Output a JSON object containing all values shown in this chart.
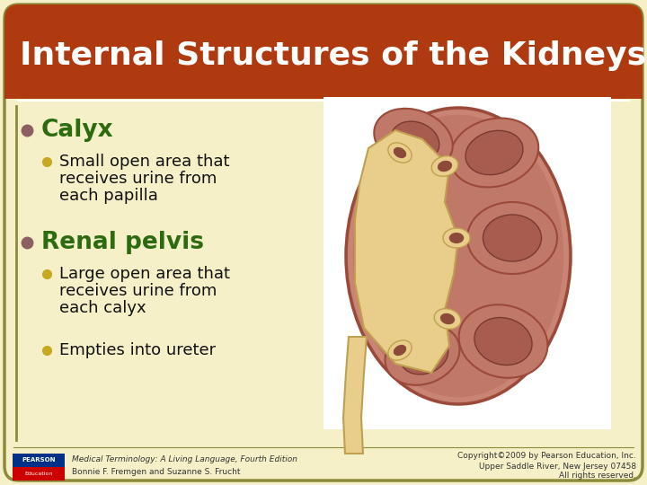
{
  "title": "Internal Structures of the Kidneys",
  "title_bg": "#B03A10",
  "title_text_color": "#FFFFFF",
  "slide_bg": "#F5F0C8",
  "slide_border_color": "#8B8B3A",
  "heading1": "Calyx",
  "heading1_color": "#2D6B10",
  "bullet1_line1": "Small open area that",
  "bullet1_line2": "receives urine from",
  "bullet1_line3": "each papilla",
  "heading2": "Renal pelvis",
  "heading2_color": "#2D6B10",
  "bullet2a_line1": "Large open area that",
  "bullet2a_line2": "receives urine from",
  "bullet2a_line3": "each calyx",
  "bullet2b": "Empties into ureter",
  "bullet_color_main": "#8B6060",
  "bullet_color_sub": "#C8A820",
  "text_color": "#111111",
  "footer_left_line1": "Medical Terminology: A Living Language, Fourth Edition",
  "footer_left_line2": "Bonnie F. Fremgen and Suzanne S. Frucht",
  "footer_right_line1": "Copyright©2009 by Pearson Education, Inc.",
  "footer_right_line2": "Upper Saddle River, New Jersey 07458",
  "footer_right_line3": "All rights reserved.",
  "pearson_blue": "#003087",
  "pearson_red": "#CC0000"
}
